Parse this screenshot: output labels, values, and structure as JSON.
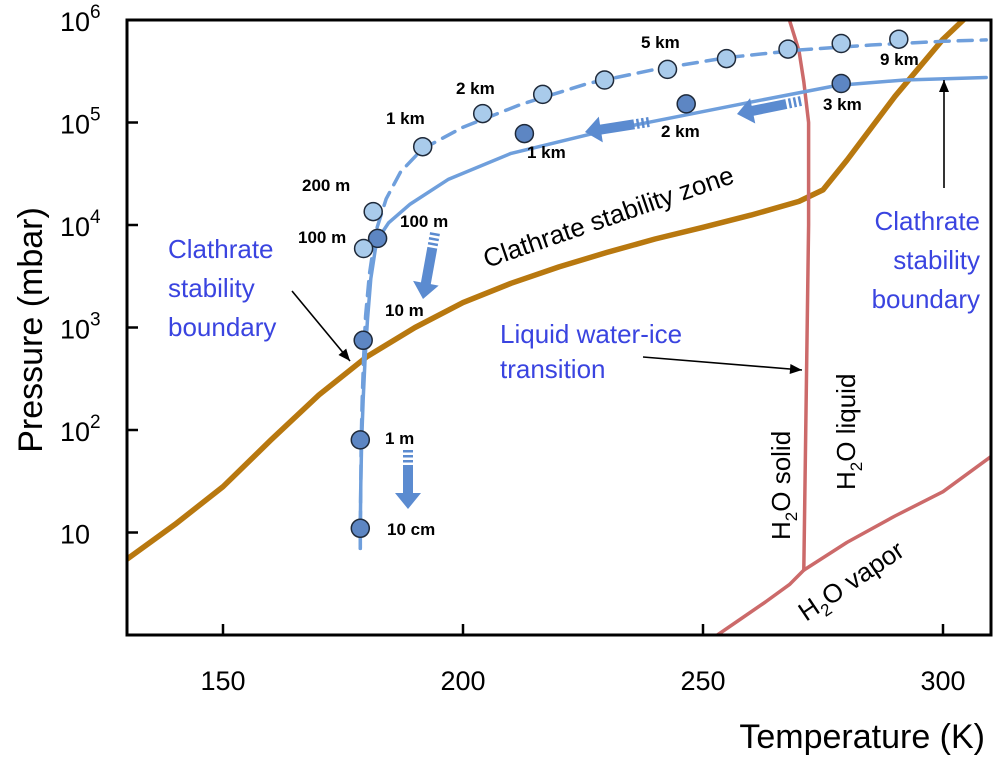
{
  "chart_data": {
    "type": "line",
    "title": "",
    "xlabel": "Temperature (K)",
    "ylabel": "Pressure (mbar)",
    "xlim": [
      130,
      310
    ],
    "ylim_log10": [
      0,
      6
    ],
    "y_scale": "log",
    "x_ticks": [
      150,
      200,
      250,
      300
    ],
    "x_tick_labels": [
      "150",
      "200",
      "250",
      "300"
    ],
    "y_ticks": [
      10,
      100,
      1000,
      10000,
      100000,
      1000000
    ],
    "y_tick_labels": [
      {
        "base": "10",
        "exp": ""
      },
      {
        "base": "10",
        "exp": "2"
      },
      {
        "base": "10",
        "exp": "3"
      },
      {
        "base": "10",
        "exp": "4"
      },
      {
        "base": "10",
        "exp": "5"
      },
      {
        "base": "10",
        "exp": "6"
      }
    ],
    "grid": false,
    "colors": {
      "clathrate_stability": "#b8780f",
      "water_phase": "#cc6a6a",
      "profile_solid": "#6f9fdc",
      "profile_dashed": "#6f9fdc",
      "marker_dark": "#5d86c3",
      "marker_light": "#a9cbeb",
      "marker_edge": "#1f2a3a",
      "arrow": "#5b8bd0",
      "blue_text": "#3a44e0"
    },
    "series": [
      {
        "role": "clathrate-stability-curve",
        "x": [
          130,
          140,
          150,
          160,
          170,
          180,
          190,
          200,
          210,
          220,
          230,
          240,
          250,
          260,
          270,
          275,
          280,
          290,
          300,
          306
        ],
        "y": [
          5.5,
          12,
          28,
          80,
          220,
          520,
          1000,
          1750,
          2700,
          3900,
          5400,
          7300,
          9500,
          12500,
          17000,
          22000,
          43000,
          180000,
          650000,
          1200000
        ]
      },
      {
        "role": "liquid-water-ice-transition",
        "x": [
          268,
          270,
          271,
          272,
          272,
          271
        ],
        "y": [
          1000000,
          500000,
          250000,
          100000,
          10000,
          4.3
        ]
      },
      {
        "role": "water-vapor-curve",
        "x": [
          253,
          258,
          263,
          268,
          271,
          280,
          290,
          300,
          310
        ],
        "y": [
          1,
          1.45,
          2.1,
          3.1,
          4.3,
          8,
          14.5,
          25,
          55
        ]
      },
      {
        "role": "profile-solid",
        "x": [
          178.6,
          178.6,
          178.7,
          178.9,
          179.2,
          179.6,
          180.1,
          180.8,
          182,
          184.5,
          189,
          197,
          210,
          228,
          245,
          262,
          278,
          292,
          309
        ],
        "y": [
          7,
          11,
          30,
          80,
          200,
          500,
          1200,
          3000,
          7000,
          10500,
          16000,
          28000,
          50000,
          80000,
          115000,
          165000,
          230000,
          260000,
          275000
        ]
      },
      {
        "role": "profile-dashed",
        "x": [
          178.6,
          178.6,
          178.7,
          178.8,
          179.0,
          179.3,
          179.7,
          180.5,
          181.8,
          184,
          187,
          191.5,
          200,
          212,
          226,
          240,
          255,
          270,
          285,
          300,
          309
        ],
        "y": [
          7,
          11,
          30,
          80,
          200,
          500,
          1300,
          3300,
          8500,
          18000,
          33000,
          55000,
          90000,
          150000,
          240000,
          330000,
          430000,
          510000,
          570000,
          620000,
          640000
        ]
      }
    ],
    "markers_dark": [
      {
        "x": 178.6,
        "y": 11,
        "label": "10 cm"
      },
      {
        "x": 178.6,
        "y": 80,
        "label": "1 m"
      },
      {
        "x": 179.2,
        "y": 750,
        "label": "10 m"
      },
      {
        "x": 182.2,
        "y": 7400,
        "label": "100 m"
      },
      {
        "x": 212.8,
        "y": 78000,
        "label": "1 km"
      },
      {
        "x": 246.5,
        "y": 152000,
        "label": "2 km"
      },
      {
        "x": 278.8,
        "y": 240000,
        "label": "3 km"
      }
    ],
    "markers_light": [
      {
        "x": 179.3,
        "y": 5900,
        "label": "100 m"
      },
      {
        "x": 181.3,
        "y": 13500,
        "label": "200 m"
      },
      {
        "x": 191.6,
        "y": 58000,
        "label": "1 km"
      },
      {
        "x": 204.1,
        "y": 122000,
        "label": "2 km"
      },
      {
        "x": 216.6,
        "y": 188000,
        "label": ""
      },
      {
        "x": 229.5,
        "y": 260000,
        "label": ""
      },
      {
        "x": 242.6,
        "y": 330000,
        "label": "5 km"
      },
      {
        "x": 254.9,
        "y": 420000,
        "label": ""
      },
      {
        "x": 267.7,
        "y": 520000,
        "label": ""
      },
      {
        "x": 278.8,
        "y": 590000,
        "label": ""
      },
      {
        "x": 290.8,
        "y": 650000,
        "label": "9 km"
      }
    ],
    "annotations": {
      "clathrate_zone": "Clathrate stability zone",
      "boundary_left": [
        "Clathrate",
        "stability",
        "boundary"
      ],
      "boundary_right": [
        "Clathrate",
        "stability",
        "boundary"
      ],
      "water_transition": [
        "Liquid water-ice",
        "transition"
      ],
      "h2o_solid": {
        "main": "H",
        "sub": "2",
        "rest": "O solid"
      },
      "h2o_liquid": {
        "main": "H",
        "sub": "2",
        "rest": "O liquid"
      },
      "h2o_vapor": {
        "main": "H",
        "sub": "2",
        "rest": "O vapor"
      }
    }
  }
}
